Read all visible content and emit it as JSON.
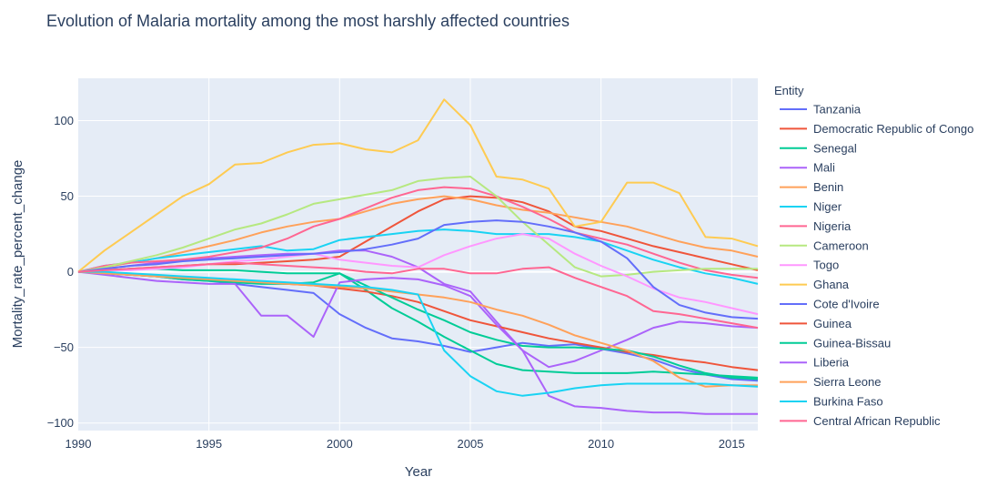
{
  "chart_data": {
    "type": "line",
    "title": "Evolution of Malaria mortality among the most harshly affected countries",
    "xlabel": "Year",
    "ylabel": "Mortality_rate_percent_change",
    "xlim": [
      1990,
      2016
    ],
    "ylim": [
      -105,
      128
    ],
    "x_ticks": [
      1990,
      1995,
      2000,
      2005,
      2010,
      2015
    ],
    "y_ticks": [
      -100,
      -50,
      0,
      50,
      100
    ],
    "grid": true,
    "legend_title": "Entity",
    "legend_position": "right",
    "x": [
      1990,
      1991,
      1992,
      1993,
      1994,
      1995,
      1996,
      1997,
      1998,
      1999,
      2000,
      2001,
      2002,
      2003,
      2004,
      2005,
      2006,
      2007,
      2008,
      2009,
      2010,
      2011,
      2012,
      2013,
      2014,
      2015,
      2016
    ],
    "series": [
      {
        "name": "Tanzania",
        "color": "#636efa",
        "values": [
          0,
          -1,
          -2,
          -3,
          -5,
          -6,
          -8,
          -10,
          -12,
          -14,
          -28,
          -37,
          -44,
          -46,
          -49,
          -53,
          -50,
          -47,
          -49,
          -48,
          -51,
          -54,
          -58,
          -64,
          -68,
          -71,
          -72
        ]
      },
      {
        "name": "Democratic Republic of Congo",
        "color": "#ef553b",
        "values": [
          0,
          1,
          2,
          3,
          4,
          5,
          5,
          6,
          7,
          8,
          10,
          20,
          30,
          40,
          48,
          50,
          49,
          46,
          40,
          30,
          27,
          22,
          17,
          13,
          9,
          5,
          1
        ]
      },
      {
        "name": "Senegal",
        "color": "#00cc96",
        "values": [
          0,
          1,
          2,
          2,
          1,
          1,
          1,
          0,
          -1,
          -1,
          -1,
          -12,
          -24,
          -33,
          -43,
          -52,
          -61,
          -65,
          -66,
          -67,
          -67,
          -67,
          -66,
          -67,
          -68,
          -69,
          -70
        ]
      },
      {
        "name": "Mali",
        "color": "#ab63fa",
        "values": [
          0,
          2,
          4,
          6,
          8,
          9,
          10,
          11,
          12,
          12,
          14,
          14,
          10,
          3,
          -8,
          -13,
          -33,
          -52,
          -63,
          -59,
          -52,
          -45,
          -37,
          -33,
          -34,
          -36,
          -37
        ]
      },
      {
        "name": "Benin",
        "color": "#ffa15a",
        "values": [
          0,
          3,
          6,
          9,
          13,
          17,
          21,
          26,
          30,
          33,
          35,
          40,
          45,
          48,
          50,
          48,
          44,
          41,
          39,
          36,
          33,
          30,
          25,
          20,
          16,
          14,
          10
        ]
      },
      {
        "name": "Niger",
        "color": "#19d3f3",
        "values": [
          0,
          4,
          6,
          9,
          11,
          13,
          15,
          17,
          14,
          15,
          21,
          23,
          25,
          27,
          28,
          27,
          25,
          25,
          25,
          23,
          20,
          14,
          8,
          3,
          -1,
          -4,
          -8
        ]
      },
      {
        "name": "Nigeria",
        "color": "#ff6692",
        "values": [
          0,
          4,
          6,
          7,
          8,
          10,
          13,
          16,
          22,
          30,
          35,
          42,
          49,
          54,
          56,
          55,
          50,
          43,
          35,
          26,
          22,
          18,
          12,
          6,
          1,
          -2,
          -4
        ]
      },
      {
        "name": "Cameroon",
        "color": "#b6e880",
        "values": [
          0,
          3,
          7,
          11,
          16,
          22,
          28,
          32,
          38,
          45,
          48,
          51,
          54,
          60,
          62,
          63,
          50,
          33,
          18,
          3,
          -3,
          -2,
          0,
          1,
          2,
          2,
          2
        ]
      },
      {
        "name": "Togo",
        "color": "#ff97ff",
        "values": [
          0,
          1,
          1,
          2,
          3,
          5,
          7,
          8,
          10,
          12,
          8,
          6,
          4,
          3,
          11,
          17,
          22,
          25,
          22,
          12,
          4,
          -3,
          -11,
          -17,
          -20,
          -24,
          -28
        ]
      },
      {
        "name": "Ghana",
        "color": "#fecb52",
        "values": [
          0,
          14,
          26,
          38,
          50,
          58,
          71,
          72,
          79,
          84,
          85,
          81,
          79,
          87,
          114,
          97,
          63,
          61,
          55,
          30,
          33,
          59,
          59,
          52,
          23,
          22,
          17
        ]
      },
      {
        "name": "Cote d'Ivoire",
        "color": "#636efa",
        "values": [
          0,
          2,
          4,
          5,
          7,
          8,
          9,
          10,
          11,
          12,
          13,
          15,
          18,
          22,
          31,
          33,
          34,
          33,
          30,
          26,
          20,
          9,
          -10,
          -22,
          -27,
          -30,
          -31
        ]
      },
      {
        "name": "Guinea",
        "color": "#ef553b",
        "values": [
          0,
          -1,
          -2,
          -3,
          -4,
          -5,
          -6,
          -7,
          -8,
          -9,
          -11,
          -13,
          -16,
          -20,
          -26,
          -32,
          -36,
          -40,
          -44,
          -47,
          -50,
          -53,
          -55,
          -58,
          -60,
          -63,
          -65
        ]
      },
      {
        "name": "Guinea-Bissau",
        "color": "#00cc96",
        "values": [
          0,
          -1,
          -2,
          -3,
          -5,
          -6,
          -7,
          -8,
          -8,
          -7,
          -1,
          -9,
          -17,
          -25,
          -32,
          -40,
          -45,
          -49,
          -50,
          -50,
          -51,
          -52,
          -56,
          -62,
          -67,
          -70,
          -71
        ]
      },
      {
        "name": "Liberia",
        "color": "#ab63fa",
        "values": [
          0,
          -2,
          -4,
          -6,
          -7,
          -8,
          -8,
          -29,
          -29,
          -43,
          -7,
          -5,
          -4,
          -5,
          -9,
          -16,
          -35,
          -52,
          -82,
          -89,
          -90,
          -92,
          -93,
          -93,
          -94,
          -94,
          -94
        ]
      },
      {
        "name": "Sierra Leone",
        "color": "#ffa15a",
        "values": [
          0,
          -1,
          -2,
          -3,
          -4,
          -5,
          -6,
          -7,
          -8,
          -9,
          -10,
          -11,
          -13,
          -15,
          -17,
          -20,
          -25,
          -29,
          -35,
          -42,
          -47,
          -52,
          -59,
          -70,
          -76,
          -75,
          -75
        ]
      },
      {
        "name": "Burkina Faso",
        "color": "#19d3f3",
        "values": [
          0,
          0,
          -1,
          -2,
          -3,
          -4,
          -5,
          -6,
          -7,
          -8,
          -9,
          -10,
          -12,
          -15,
          -52,
          -69,
          -79,
          -82,
          -80,
          -77,
          -75,
          -74,
          -74,
          -74,
          -74,
          -75,
          -76
        ]
      },
      {
        "name": "Central African Republic",
        "color": "#ff6692",
        "values": [
          0,
          1,
          2,
          3,
          4,
          5,
          6,
          5,
          4,
          3,
          2,
          0,
          -1,
          2,
          2,
          -1,
          -1,
          2,
          3,
          -4,
          -10,
          -16,
          -26,
          -28,
          -31,
          -34,
          -37
        ]
      }
    ]
  }
}
